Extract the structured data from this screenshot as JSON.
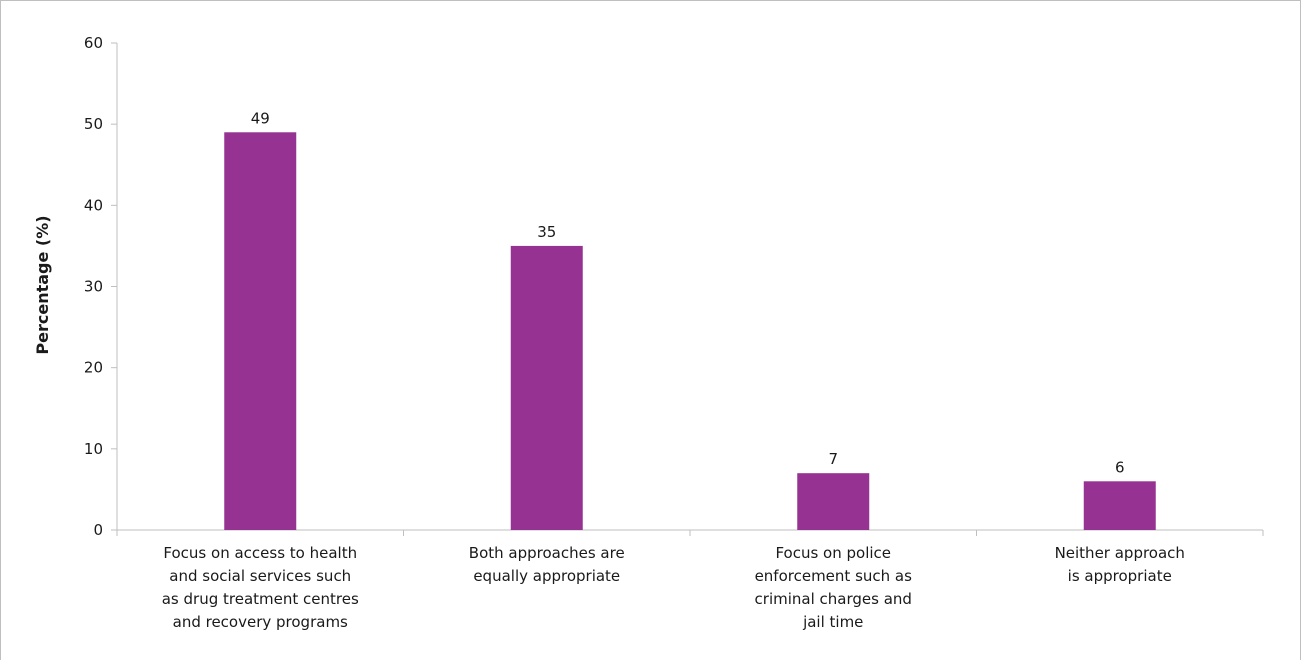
{
  "chart_data": {
    "type": "bar",
    "categories": [
      "Focus on access to health and social services such as drug treatment centres and recovery programs",
      "Both approaches are equally appropriate",
      "Focus on police enforcement such as criminal charges and jail time",
      "Neither approach is appropriate"
    ],
    "category_lines": [
      [
        "Focus on access to health",
        "and social services such",
        "as drug treatment centres",
        "and recovery programs"
      ],
      [
        "Both approaches are",
        "equally appropriate"
      ],
      [
        "Focus on police",
        "enforcement such as",
        "criminal charges and",
        "jail time"
      ],
      [
        "Neither approach",
        "is appropriate"
      ]
    ],
    "values": [
      49,
      35,
      7,
      6
    ],
    "data_labels": [
      "49",
      "35",
      "7",
      "6"
    ],
    "ylabel": "Percentage (%)",
    "ylim": [
      0,
      60
    ],
    "yticks": [
      0,
      10,
      20,
      30,
      40,
      50,
      60
    ],
    "grid": false,
    "legend": "none",
    "bar_color": "#963392"
  }
}
